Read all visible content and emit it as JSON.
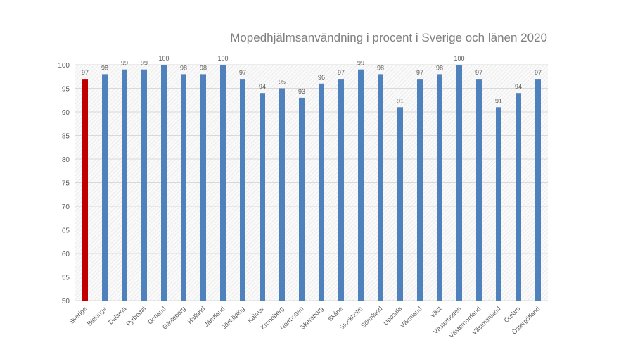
{
  "chart_data": {
    "type": "bar",
    "title": "Mopedhjälmsanvändning i procent i Sverige och länen 2020",
    "xlabel": "",
    "ylabel": "",
    "ylim": [
      50,
      100
    ],
    "yticks": [
      50,
      55,
      60,
      65,
      70,
      75,
      80,
      85,
      90,
      95,
      100
    ],
    "grid": true,
    "categories": [
      "Sverige",
      "Blekinge",
      "Dalarna",
      "Fyrbodal",
      "Gotland",
      "Gävleborg",
      "Halland",
      "Jämtland",
      "Jönköping",
      "Kalmar",
      "Kronoberg",
      "Norrbotten",
      "Skaraborg",
      "Skåne",
      "Stockholm",
      "Sörmland",
      "Uppsala",
      "Värmland",
      "Väst",
      "Västerbotten",
      "Västernorrland",
      "Västmanland",
      "Örebro",
      "Östergötland"
    ],
    "values": [
      97,
      98,
      99,
      99,
      100,
      98,
      98,
      100,
      97,
      94,
      95,
      93,
      96,
      97,
      99,
      98,
      91,
      97,
      98,
      100,
      97,
      91,
      94,
      97
    ],
    "colors": {
      "highlight": "#c00000",
      "default": "#4f81bd"
    },
    "highlight_category": "Sverige"
  }
}
